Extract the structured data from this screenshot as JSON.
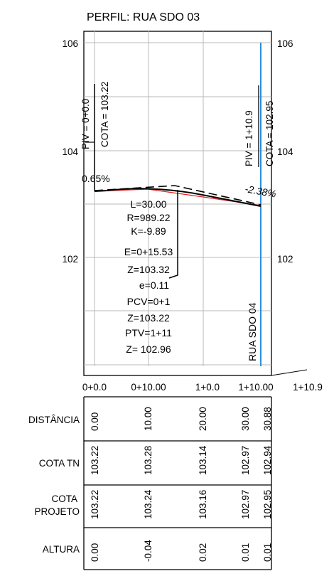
{
  "title": "PERFIL: RUA SDO 03",
  "y_ticks": [
    "106",
    "104",
    "102"
  ],
  "y_ticks_right": [
    "106",
    "104",
    "102"
  ],
  "x_ticks": [
    "0+0.0",
    "0+10.00",
    "1+0.0",
    "1+10.00",
    "1+10.9"
  ],
  "piv_start": {
    "station": "PIV = 0+0.0",
    "cota": "COTA = 103.22"
  },
  "piv_end": {
    "station": "PIV = 1+10.9",
    "cota": "COTA = 102.95"
  },
  "grade_left": "0.65%",
  "grade_right": "-2.38%",
  "curve_info": [
    "L=30.00",
    "R=989.22",
    "K=-9.89",
    "E=0+15.53",
    "Z=103.32",
    "e=0.11",
    "PCV=0+1",
    "Z=103.22",
    "PTV=1+11",
    "Z= 102.96"
  ],
  "intersection_label": "RUA SDO 04",
  "colors": {
    "terrain": "#e02020",
    "intersection": "#2a8fe0",
    "grid": "#b8b8b8",
    "profile": "#000000"
  },
  "chart_data": {
    "type": "line",
    "title": "PERFIL: RUA SDO 03",
    "x_tick_labels": [
      "0+0.0",
      "0+10.00",
      "1+0.0",
      "1+10.00",
      "1+10.9"
    ],
    "y_range_visible": [
      100.3,
      106.2
    ],
    "series": [
      {
        "x": [
          0,
          10,
          20,
          30,
          30.88
        ],
        "values": [
          103.22,
          103.28,
          103.14,
          102.97,
          102.94
        ]
      },
      {
        "x": [
          0,
          10,
          20,
          30,
          30.88
        ],
        "values": [
          103.22,
          103.24,
          103.16,
          102.97,
          102.95
        ]
      }
    ],
    "grid": true
  },
  "table": {
    "rows": [
      {
        "label": "DISTÂNCIA",
        "values": [
          "0.00",
          "10.00",
          "20.00",
          "30.00",
          "30.88"
        ]
      },
      {
        "label": "COTA TN",
        "values": [
          "103.22",
          "103.28",
          "103.14",
          "102.97",
          "102.94"
        ]
      },
      {
        "label": "COTA\nPROJETO",
        "values": [
          "103.22",
          "103.24",
          "103.16",
          "102.97",
          "102.95"
        ]
      },
      {
        "label": "ALTURA",
        "values": [
          "0.00",
          "-0.04",
          "0.02",
          "0.01",
          "0.01"
        ]
      }
    ]
  }
}
